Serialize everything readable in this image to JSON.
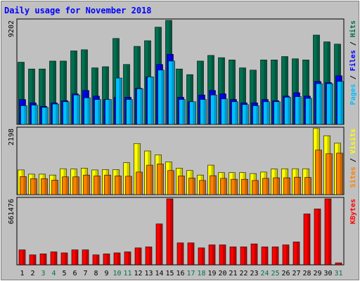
{
  "chart_data": {
    "type": "bar",
    "title": "Daily usage for November 2018",
    "categories": [
      "1",
      "2",
      "3",
      "4",
      "5",
      "6",
      "7",
      "8",
      "9",
      "10",
      "11",
      "12",
      "13",
      "14",
      "15",
      "16",
      "17",
      "18",
      "19",
      "20",
      "21",
      "22",
      "23",
      "24",
      "25",
      "26",
      "27",
      "28",
      "29",
      "30",
      "31"
    ],
    "weekend_days": [
      "3",
      "4",
      "10",
      "11",
      "17",
      "18",
      "24",
      "25",
      "31"
    ],
    "panels": [
      {
        "id": "hits-files-pages",
        "ymax_label": "9202",
        "ymax": 9202,
        "label_parts": [
          {
            "text": "Pages",
            "color": "#00c0ff"
          },
          {
            "text": " / ",
            "color": "#000000"
          },
          {
            "text": "Files",
            "color": "#0000ff"
          },
          {
            "text": " / ",
            "color": "#000000"
          },
          {
            "text": "Hits",
            "color": "#007050"
          }
        ],
        "series": [
          {
            "name": "Hits",
            "color": "#007050",
            "values": [
              5500,
              4900,
              4900,
              5600,
              5600,
              6500,
              6600,
              5000,
              5100,
              7600,
              5300,
              6900,
              7400,
              8600,
              9200,
              4900,
              4400,
              5600,
              6100,
              5900,
              5700,
              5000,
              4800,
              5700,
              5700,
              6000,
              5800,
              5700,
              7900,
              7300,
              7100
            ]
          },
          {
            "name": "Files",
            "color": "#0000ff",
            "values": [
              2200,
              1900,
              1600,
              1900,
              2100,
              2700,
              3000,
              2500,
              2200,
              2400,
              2400,
              3200,
              4200,
              5300,
              6200,
              2400,
              2000,
              2600,
              3000,
              2700,
              2200,
              1900,
              1900,
              2200,
              2100,
              2500,
              2800,
              2500,
              3800,
              3700,
              4300
            ]
          },
          {
            "name": "Pages",
            "color": "#00c0ff",
            "values": [
              1650,
              1700,
              1500,
              1800,
              2000,
              2600,
              2350,
              2200,
              2200,
              4100,
              2200,
              3150,
              4200,
              4800,
              5600,
              2200,
              2000,
              2200,
              2600,
              2250,
              2000,
              1750,
              1650,
              2000,
              2000,
              2400,
              2450,
              2300,
              3600,
              3600,
              3800
            ]
          }
        ]
      },
      {
        "id": "visits-sites",
        "ymax_label": "2198",
        "ymax": 2198,
        "label_parts": [
          {
            "text": "Sites",
            "color": "#ff8000"
          },
          {
            "text": " / ",
            "color": "#000000"
          },
          {
            "text": "Visits",
            "color": "#ffff00"
          }
        ],
        "series": [
          {
            "name": "Visits",
            "color": "#ffff00",
            "values": [
              820,
              680,
              680,
              650,
              860,
              850,
              880,
              820,
              830,
              830,
              1060,
              1700,
              1450,
              1320,
              1090,
              880,
              800,
              650,
              980,
              730,
              730,
              730,
              700,
              750,
              850,
              860,
              860,
              860,
              2200,
              1960,
              1710
            ]
          },
          {
            "name": "Sites",
            "color": "#ff8000",
            "values": [
              600,
              530,
              530,
              480,
              590,
              590,
              650,
              620,
              650,
              620,
              610,
              750,
              980,
              1020,
              800,
              620,
              550,
              470,
              630,
              540,
              510,
              510,
              470,
              540,
              560,
              560,
              580,
              570,
              1480,
              1360,
              1380
            ]
          }
        ]
      },
      {
        "id": "kbytes",
        "ymax_label": "661476",
        "ymax": 661476,
        "label_parts": [
          {
            "text": "KBytes",
            "color": "#ff0000"
          }
        ],
        "series": [
          {
            "name": "KBytes",
            "color": "#ff0000",
            "values": [
              150000,
              100000,
              110000,
              130000,
              120000,
              150000,
              150000,
              100000,
              110000,
              120000,
              130000,
              170000,
              180000,
              410000,
              661476,
              220000,
              220000,
              170000,
              200000,
              200000,
              180000,
              180000,
              210000,
              180000,
              180000,
              200000,
              230000,
              510000,
              560000,
              661476,
              20000
            ]
          }
        ]
      }
    ]
  }
}
